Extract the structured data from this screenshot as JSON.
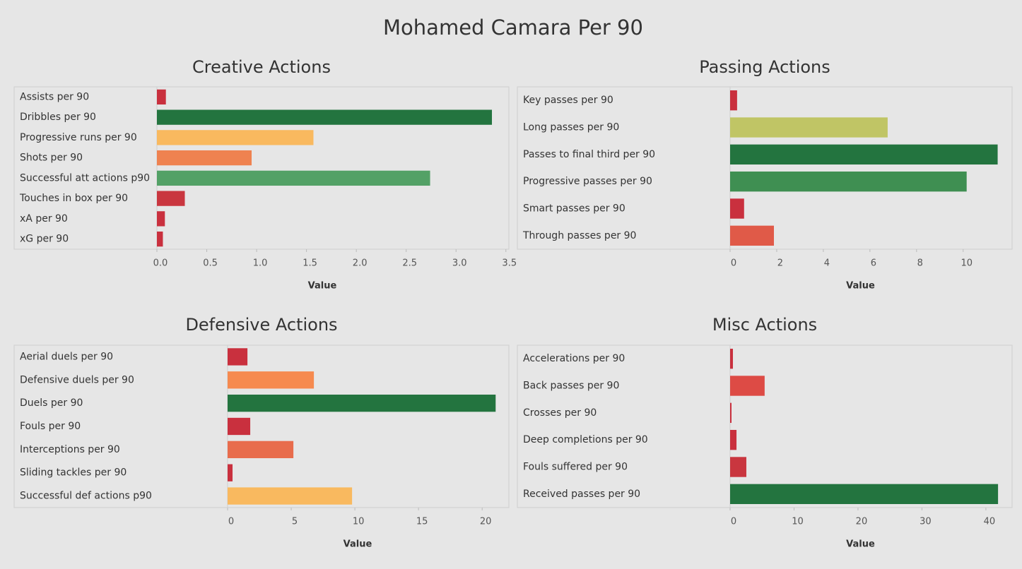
{
  "title": "Mohamed Camara Per 90",
  "chart_data": [
    {
      "type": "bar",
      "title": "Creative Actions",
      "xlabel": "Value",
      "categories": [
        "Assists per 90",
        "Dribbles per 90",
        "Progressive runs per 90",
        "Shots per 90",
        "Successful att actions p90",
        "Touches in box per 90",
        "xA per 90",
        "xG per 90"
      ],
      "values": [
        0.09,
        3.36,
        1.57,
        0.95,
        2.74,
        0.28,
        0.08,
        0.06
      ],
      "colors": [
        "#c9303e",
        "#23743f",
        "#f9b95f",
        "#ef8250",
        "#53a166",
        "#c9363f",
        "#c9303e",
        "#c9303e"
      ],
      "xlim": [
        0,
        3.53
      ],
      "xticks": [
        {
          "value": 0,
          "label": "0.0"
        },
        0.5,
        {
          "value": 1,
          "label": "1.0"
        },
        1.5,
        {
          "value": 2,
          "label": "2.0"
        },
        2.5,
        {
          "value": 3,
          "label": "3.0"
        },
        3.5
      ]
    },
    {
      "type": "bar",
      "title": "Passing Actions",
      "xlabel": "Value",
      "categories": [
        "Key passes per 90",
        "Long passes per 90",
        "Passes to final third per 90",
        "Progressive passes per 90",
        "Smart passes per 90",
        "Through passes per 90"
      ],
      "values": [
        0.3,
        6.76,
        11.48,
        10.15,
        0.6,
        1.88
      ],
      "colors": [
        "#c9303e",
        "#c0c565",
        "#23743f",
        "#3f8f52",
        "#c9303e",
        "#e05a48"
      ],
      "xlim": [
        0,
        12.1
      ],
      "xticks": [
        0,
        2,
        4,
        6,
        8,
        10
      ]
    },
    {
      "type": "bar",
      "title": "Defensive Actions",
      "xlabel": "Value",
      "categories": [
        "Aerial duels per 90",
        "Defensive duels per 90",
        "Duels per 90",
        "Fouls per 90",
        "Interceptions per 90",
        "Sliding tackles per 90",
        "Successful def actions p90"
      ],
      "values": [
        1.56,
        6.78,
        21.06,
        1.78,
        5.17,
        0.39,
        9.78
      ],
      "colors": [
        "#c9303e",
        "#f68a4f",
        "#23743f",
        "#c9303e",
        "#e86c4c",
        "#c9303e",
        "#f9b95f"
      ],
      "xlim": [
        0,
        22.1
      ],
      "xticks": [
        0,
        5,
        10,
        15,
        20
      ]
    },
    {
      "type": "bar",
      "title": "Misc Actions",
      "xlabel": "Value",
      "categories": [
        "Accelerations per 90",
        "Back passes per 90",
        "Crosses per 90",
        "Deep completions per 90",
        "Fouls suffered per 90",
        "Received passes per 90"
      ],
      "values": [
        0.44,
        5.4,
        0.22,
        1.0,
        2.54,
        41.9
      ],
      "colors": [
        "#c9303e",
        "#dd4b45",
        "#c9303e",
        "#c9303e",
        "#c9363f",
        "#23743f"
      ],
      "xlim": [
        0,
        44.1
      ],
      "xticks": [
        0,
        10,
        20,
        30,
        40
      ]
    }
  ]
}
